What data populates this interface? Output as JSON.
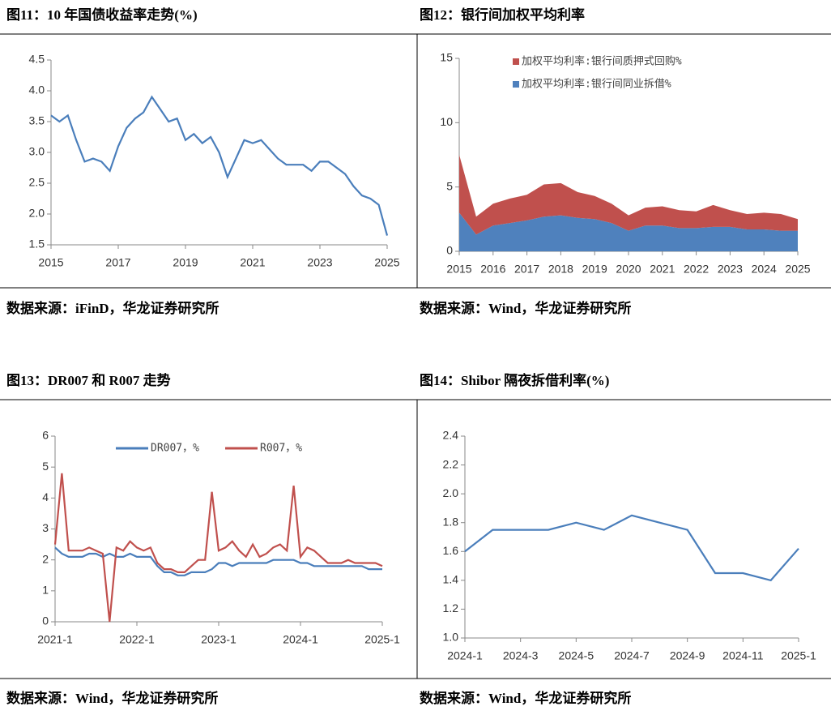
{
  "chart_data": [
    {
      "type": "line",
      "title": "图11：10 年国债收益率走势(%)",
      "source": "数据来源：iFinD，华龙证券研究所",
      "x": [
        2015,
        2015.25,
        2015.5,
        2015.75,
        2016,
        2016.25,
        2016.5,
        2016.75,
        2017,
        2017.25,
        2017.5,
        2017.75,
        2018,
        2018.25,
        2018.5,
        2018.75,
        2019,
        2019.25,
        2019.5,
        2019.75,
        2020,
        2020.25,
        2020.5,
        2020.75,
        2021,
        2021.25,
        2021.5,
        2021.75,
        2022,
        2022.25,
        2022.5,
        2022.75,
        2023,
        2023.25,
        2023.5,
        2023.75,
        2024,
        2024.25,
        2024.5,
        2024.75,
        2025
      ],
      "values": [
        3.6,
        3.5,
        3.6,
        3.2,
        2.85,
        2.9,
        2.85,
        2.7,
        3.1,
        3.4,
        3.55,
        3.65,
        3.9,
        3.7,
        3.5,
        3.55,
        3.2,
        3.3,
        3.15,
        3.25,
        3.0,
        2.6,
        2.9,
        3.2,
        3.15,
        3.2,
        3.05,
        2.9,
        2.8,
        2.8,
        2.8,
        2.7,
        2.85,
        2.85,
        2.75,
        2.65,
        2.45,
        2.3,
        2.25,
        2.15,
        1.65
      ],
      "color": "#4a7ebb",
      "xlim": [
        2015,
        2025
      ],
      "xticks": [
        2015,
        2017,
        2019,
        2021,
        2023,
        2025
      ],
      "ylim": [
        1.5,
        4.5
      ],
      "yticks": [
        {
          "value": 1.5,
          "label": "1.5"
        },
        {
          "value": 2,
          "label": "2.0"
        },
        {
          "value": 2.5,
          "label": "2.5"
        },
        {
          "value": 3,
          "label": "3.0"
        },
        {
          "value": 3.5,
          "label": "3.5"
        },
        {
          "value": 4,
          "label": "4.0"
        },
        {
          "value": 4.5,
          "label": "4.5"
        }
      ]
    },
    {
      "type": "stacked-area",
      "title": "图12：银行间加权平均利率",
      "source": "数据来源：Wind，华龙证券研究所",
      "x": [
        2015,
        2015.5,
        2016,
        2016.5,
        2017,
        2017.5,
        2018,
        2018.5,
        2019,
        2019.5,
        2020,
        2020.5,
        2021,
        2021.5,
        2022,
        2022.5,
        2023,
        2023.5,
        2024,
        2024.5,
        2025
      ],
      "series": [
        {
          "name": "加权平均利率:银行间质押式回购%",
          "color": "#c0504d",
          "values": [
            4.5,
            1.4,
            1.7,
            1.9,
            2.0,
            2.5,
            2.5,
            2.0,
            1.8,
            1.5,
            1.2,
            1.4,
            1.5,
            1.4,
            1.3,
            1.7,
            1.3,
            1.2,
            1.3,
            1.3,
            0.9
          ]
        },
        {
          "name": "加权平均利率:银行间同业拆借%",
          "color": "#4f81bd",
          "values": [
            3.0,
            1.3,
            2.0,
            2.2,
            2.4,
            2.7,
            2.8,
            2.6,
            2.5,
            2.2,
            1.6,
            2.0,
            2.0,
            1.8,
            1.8,
            1.9,
            1.9,
            1.7,
            1.7,
            1.6,
            1.6
          ]
        }
      ],
      "legend": "upper left",
      "xlim": [
        2015,
        2025
      ],
      "xticks": [
        2015,
        2016,
        2017,
        2018,
        2019,
        2020,
        2021,
        2022,
        2023,
        2024,
        2025
      ],
      "ylim": [
        0,
        15
      ],
      "yticks": [
        0,
        5,
        10,
        15
      ]
    },
    {
      "type": "line",
      "title": "图13：DR007 和 R007 走势",
      "source": "数据来源：Wind，华龙证券研究所",
      "categories": [
        "2021-1",
        "2021-2",
        "2021-3",
        "2021-4",
        "2021-5",
        "2021-6",
        "2021-7",
        "2021-8",
        "2021-9",
        "2021-10",
        "2021-11",
        "2021-12",
        "2022-1",
        "2022-2",
        "2022-3",
        "2022-4",
        "2022-5",
        "2022-6",
        "2022-7",
        "2022-8",
        "2022-9",
        "2022-10",
        "2022-11",
        "2022-12",
        "2023-1",
        "2023-2",
        "2023-3",
        "2023-4",
        "2023-5",
        "2023-6",
        "2023-7",
        "2023-8",
        "2023-9",
        "2023-10",
        "2023-11",
        "2023-12",
        "2024-1",
        "2024-2",
        "2024-3",
        "2024-4",
        "2024-5",
        "2024-6",
        "2024-7",
        "2024-8",
        "2024-9",
        "2024-10",
        "2024-11",
        "2024-12",
        "2025-1"
      ],
      "series": [
        {
          "name": "DR007，%",
          "color": "#4a7ebb",
          "values": [
            2.4,
            2.2,
            2.1,
            2.1,
            2.1,
            2.2,
            2.2,
            2.1,
            2.2,
            2.1,
            2.1,
            2.2,
            2.1,
            2.1,
            2.1,
            1.8,
            1.6,
            1.6,
            1.5,
            1.5,
            1.6,
            1.6,
            1.6,
            1.7,
            1.9,
            1.9,
            1.8,
            1.9,
            1.9,
            1.9,
            1.9,
            1.9,
            2.0,
            2.0,
            2.0,
            2.0,
            1.9,
            1.9,
            1.8,
            1.8,
            1.8,
            1.8,
            1.8,
            1.8,
            1.8,
            1.8,
            1.7,
            1.7,
            1.7
          ]
        },
        {
          "name": "R007，%",
          "color": "#c0504d",
          "values": [
            2.5,
            4.8,
            2.3,
            2.3,
            2.3,
            2.4,
            2.3,
            2.2,
            0,
            2.4,
            2.3,
            2.6,
            2.4,
            2.3,
            2.4,
            1.9,
            1.7,
            1.7,
            1.6,
            1.6,
            1.8,
            2.0,
            2.0,
            4.2,
            2.3,
            2.4,
            2.6,
            2.3,
            2.1,
            2.5,
            2.1,
            2.2,
            2.4,
            2.5,
            2.3,
            4.4,
            2.1,
            2.4,
            2.3,
            2.1,
            1.9,
            1.9,
            1.9,
            2.0,
            1.9,
            1.9,
            1.9,
            1.9,
            1.8
          ]
        }
      ],
      "legend": "upper center",
      "xticks": [
        "2021-1",
        "2022-1",
        "2023-1",
        "2024-1",
        "2025-1"
      ],
      "ylim": [
        0,
        6
      ],
      "yticks": [
        0,
        1,
        2,
        3,
        4,
        5,
        6
      ]
    },
    {
      "type": "line",
      "title": "图14：Shibor 隔夜拆借利率(%)",
      "source": "数据来源：Wind，华龙证券研究所",
      "categories": [
        "2024-1",
        "2024-2",
        "2024-3",
        "2024-4",
        "2024-5",
        "2024-6",
        "2024-7",
        "2024-8",
        "2024-9",
        "2024-10",
        "2024-11",
        "2024-12",
        "2025-1"
      ],
      "values": [
        1.6,
        1.75,
        1.75,
        1.75,
        1.8,
        1.75,
        1.85,
        1.8,
        1.75,
        1.45,
        1.45,
        1.4,
        1.62
      ],
      "color": "#4a7ebb",
      "xticks": [
        "2024-1",
        "2024-3",
        "2024-5",
        "2024-7",
        "2024-9",
        "2024-11",
        "2025-1"
      ],
      "ylim": [
        1,
        2.4
      ],
      "yticks": [
        {
          "value": 1,
          "label": "1.0"
        },
        {
          "value": 1.2,
          "label": "1.2"
        },
        {
          "value": 1.4,
          "label": "1.4"
        },
        {
          "value": 1.6,
          "label": "1.6"
        },
        {
          "value": 1.8,
          "label": "1.8"
        },
        {
          "value": 2,
          "label": "2.0"
        },
        {
          "value": 2.2,
          "label": "2.2"
        },
        {
          "value": 2.4,
          "label": "2.4"
        }
      ]
    }
  ]
}
